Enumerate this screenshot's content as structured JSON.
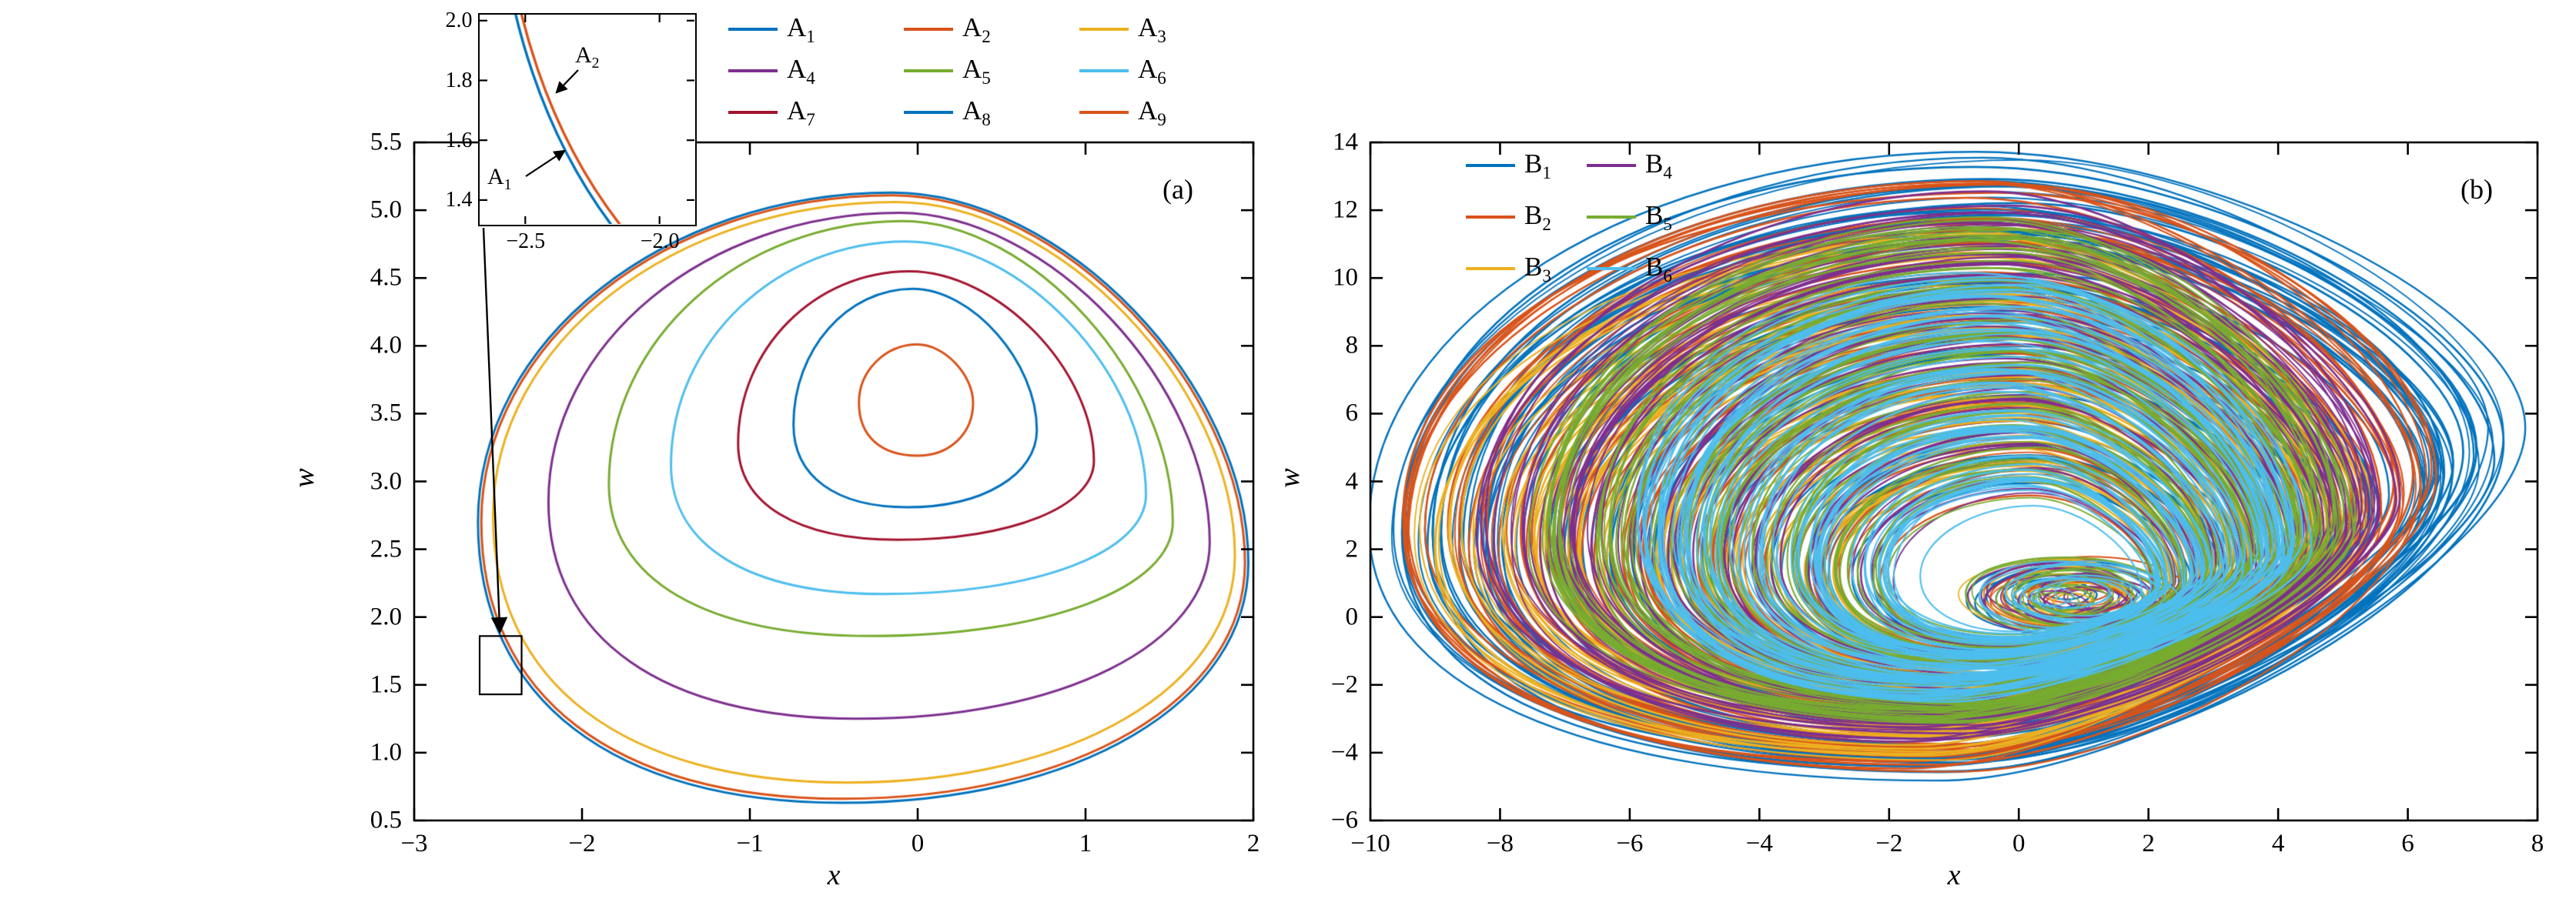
{
  "chart_data": [
    {
      "id": "a",
      "type": "line",
      "subtype": "phase-portrait-periodic-orbits",
      "tag": "(a)",
      "xlabel": "x",
      "ylabel": "w",
      "x_range": [
        -3,
        2
      ],
      "y_range": [
        0.5,
        5.5
      ],
      "x_ticks": [
        -3,
        -2,
        -1,
        0,
        1,
        2
      ],
      "x_tick_labels": [
        "−3",
        "−2",
        "−1",
        "0",
        "1",
        "2"
      ],
      "y_ticks": [
        0.5,
        1.0,
        1.5,
        2.0,
        2.5,
        3.0,
        3.5,
        4.0,
        4.5,
        5.0,
        5.5
      ],
      "y_tick_labels": [
        "0.5",
        "1.0",
        "1.5",
        "2.0",
        "2.5",
        "3.0",
        "3.5",
        "4.0",
        "4.5",
        "5.0",
        "5.5"
      ],
      "legend_position": "top-outside",
      "series": [
        {
          "name": "A",
          "sub": "1",
          "color": "#0072BD",
          "orbit": {
            "xmin": -2.62,
            "xmax": 1.97,
            "wmin": 0.63,
            "wmax": 5.13,
            "xtop": -0.15,
            "xbot": -0.45,
            "wleft": 2.7,
            "wright": 2.4
          }
        },
        {
          "name": "A",
          "sub": "2",
          "color": "#D95319",
          "orbit": {
            "xmin": -2.6,
            "xmax": 1.95,
            "wmin": 0.66,
            "wmax": 5.11,
            "xtop": -0.15,
            "xbot": -0.45,
            "wleft": 2.7,
            "wright": 2.4
          }
        },
        {
          "name": "A",
          "sub": "3",
          "color": "#EDB120",
          "orbit": {
            "xmin": -2.53,
            "xmax": 1.89,
            "wmin": 0.78,
            "wmax": 5.06,
            "xtop": -0.13,
            "xbot": -0.42,
            "wleft": 2.75,
            "wright": 2.45
          }
        },
        {
          "name": "A",
          "sub": "4",
          "color": "#7E2F8E",
          "orbit": {
            "xmin": -2.2,
            "xmax": 1.74,
            "wmin": 1.25,
            "wmax": 4.98,
            "xtop": -0.11,
            "xbot": -0.36,
            "wleft": 2.85,
            "wright": 2.55
          }
        },
        {
          "name": "A",
          "sub": "5",
          "color": "#77AC30",
          "orbit": {
            "xmin": -1.84,
            "xmax": 1.52,
            "wmin": 1.86,
            "wmax": 4.92,
            "xtop": -0.09,
            "xbot": -0.28,
            "wleft": 2.98,
            "wright": 2.7
          }
        },
        {
          "name": "A",
          "sub": "6",
          "color": "#4DBEEE",
          "orbit": {
            "xmin": -1.47,
            "xmax": 1.36,
            "wmin": 2.17,
            "wmax": 4.77,
            "xtop": -0.07,
            "xbot": -0.2,
            "wleft": 3.12,
            "wright": 2.9
          }
        },
        {
          "name": "A",
          "sub": "7",
          "color": "#A2142F",
          "orbit": {
            "xmin": -1.07,
            "xmax": 1.05,
            "wmin": 2.57,
            "wmax": 4.55,
            "xtop": -0.05,
            "xbot": -0.12,
            "wleft": 3.28,
            "wright": 3.15
          }
        },
        {
          "name": "A",
          "sub": "8",
          "color": "#0072BD",
          "orbit": {
            "xmin": -0.74,
            "xmax": 0.71,
            "wmin": 2.81,
            "wmax": 4.42,
            "xtop": -0.03,
            "xbot": -0.06,
            "wleft": 3.42,
            "wright": 3.38
          }
        },
        {
          "name": "A",
          "sub": "9",
          "color": "#D95319",
          "orbit": {
            "xmin": -0.35,
            "xmax": 0.33,
            "wmin": 3.19,
            "wmax": 4.01,
            "xtop": 0.0,
            "xbot": 0.0,
            "wleft": 3.58,
            "wright": 3.58
          }
        }
      ],
      "inset": {
        "x_range": [
          -2.67,
          -1.87
        ],
        "y_range": [
          1.32,
          2.02
        ],
        "x_ticks": [
          -2.5,
          -2.0
        ],
        "x_tick_labels": [
          "−2.5",
          "−2.0"
        ],
        "y_ticks": [
          1.4,
          1.6,
          1.8,
          2.0
        ],
        "y_tick_labels": [
          "1.4",
          "1.6",
          "1.8",
          "2.0"
        ],
        "shown_series": [
          "A1",
          "A2"
        ],
        "annotations": [
          {
            "name": "A",
            "sub": "1"
          },
          {
            "name": "A",
            "sub": "2"
          }
        ],
        "zoom_rect": {
          "x": [
            -2.61,
            -2.36
          ],
          "w": [
            1.43,
            1.86
          ]
        }
      }
    },
    {
      "id": "b",
      "type": "line",
      "subtype": "phase-portrait-chaotic-attractors",
      "tag": "(b)",
      "xlabel": "x",
      "ylabel": "w",
      "x_range": [
        -10,
        8
      ],
      "y_range": [
        -6,
        14
      ],
      "x_ticks": [
        -10,
        -8,
        -6,
        -4,
        -2,
        0,
        2,
        4,
        6,
        8
      ],
      "x_tick_labels": [
        "−10",
        "−8",
        "−6",
        "−4",
        "−2",
        "0",
        "2",
        "4",
        "6",
        "8"
      ],
      "y_ticks": [
        -6,
        -4,
        -2,
        0,
        2,
        4,
        6,
        8,
        10,
        12,
        14
      ],
      "y_tick_labels": [
        "−6",
        "−4",
        "−2",
        "0",
        "2",
        "4",
        "6",
        "8",
        "10",
        "12",
        "14"
      ],
      "legend_position": "top-left-inside",
      "series": [
        {
          "name": "B",
          "sub": "1",
          "color": "#0072BD",
          "band": {
            "xmin": -9.75,
            "xmax": 7.4,
            "wmin": -4.6,
            "wmax": 13.35,
            "wright": 5.2
          }
        },
        {
          "name": "B",
          "sub": "2",
          "color": "#D95319",
          "band": {
            "xmin": -9.3,
            "xmax": 6.2,
            "wmin": -4.25,
            "wmax": 12.7,
            "wright": 4.0
          }
        },
        {
          "name": "B",
          "sub": "3",
          "color": "#EDB120",
          "band": {
            "xmin": -8.9,
            "xmax": 5.2,
            "wmin": -3.9,
            "wmax": 10.9,
            "wright": 3.0
          }
        },
        {
          "name": "B",
          "sub": "4",
          "color": "#7E2F8E",
          "band": {
            "xmin": -8.1,
            "xmax": 5.6,
            "wmin": -3.45,
            "wmax": 12.1,
            "wright": 3.4
          }
        },
        {
          "name": "B",
          "sub": "5",
          "color": "#77AC30",
          "band": {
            "xmin": -7.2,
            "xmax": 4.9,
            "wmin": -2.95,
            "wmax": 11.3,
            "wright": 2.8
          }
        },
        {
          "name": "B",
          "sub": "6",
          "color": "#4DBEEE",
          "band": {
            "xmin": -5.8,
            "xmax": 4.3,
            "wmin": -2.25,
            "wmax": 9.7,
            "wright": 2.2
          }
        }
      ],
      "inner_core": {
        "xmin": -0.5,
        "xmax": 1.25,
        "wmin": 0.05,
        "wmax": 1.6
      }
    }
  ],
  "colors": {
    "axis": "#000000",
    "background": "#ffffff"
  }
}
